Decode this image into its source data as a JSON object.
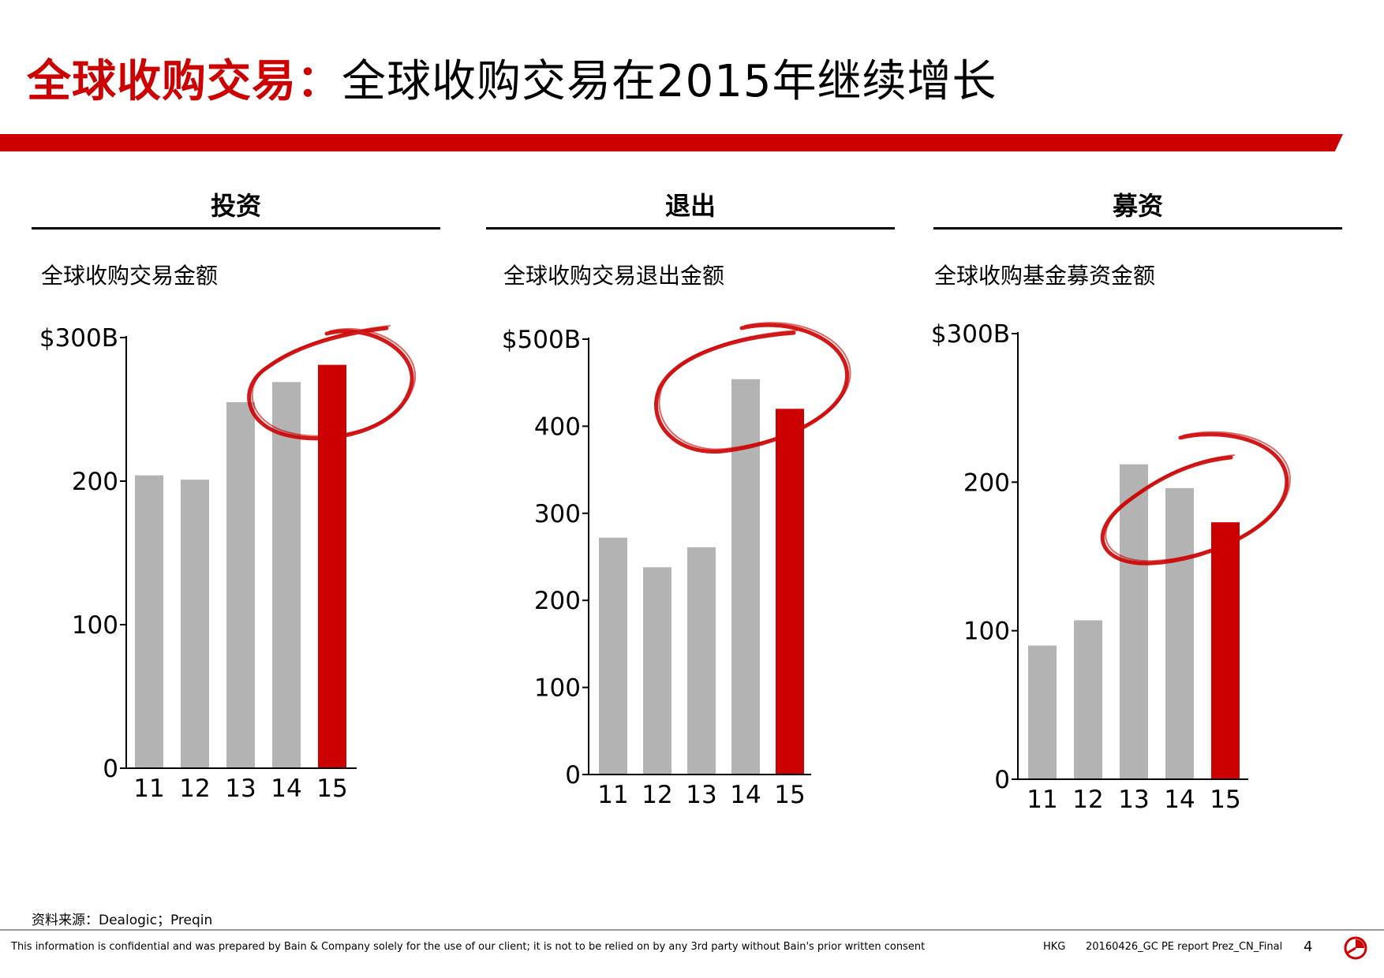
{
  "header": {
    "title_accent": "全球收购交易：",
    "title_main": "全球收购交易在2015年继续增长"
  },
  "chart_data": [
    {
      "type": "bar",
      "section": "投资",
      "title": "全球收购交易金额",
      "categories": [
        "11",
        "12",
        "13",
        "14",
        "15"
      ],
      "values": [
        204,
        201,
        255,
        269,
        281
      ],
      "highlight_index": 4,
      "ylim": [
        0,
        300
      ],
      "yticks": [
        "0",
        "100",
        "200",
        "$300B"
      ],
      "ytick_values": [
        0,
        100,
        200,
        300
      ],
      "circled": [
        "13",
        "14",
        "15"
      ]
    },
    {
      "type": "bar",
      "section": "退出",
      "title": "全球收购交易退出金额",
      "categories": [
        "11",
        "12",
        "13",
        "14",
        "15"
      ],
      "values": [
        272,
        238,
        261,
        454,
        420
      ],
      "highlight_index": 4,
      "ylim": [
        0,
        500
      ],
      "yticks": [
        "0",
        "100",
        "200",
        "300",
        "400",
        "$500B"
      ],
      "ytick_values": [
        0,
        100,
        200,
        300,
        400,
        500
      ],
      "circled": [
        "14",
        "15"
      ]
    },
    {
      "type": "bar",
      "section": "募资",
      "title": "全球收购基金募资金额",
      "categories": [
        "11",
        "12",
        "13",
        "14",
        "15"
      ],
      "values": [
        90,
        107,
        212,
        196,
        173
      ],
      "highlight_index": 4,
      "ylim": [
        0,
        300
      ],
      "yticks": [
        "0",
        "100",
        "200",
        "$300B"
      ],
      "ytick_values": [
        0,
        100,
        200,
        300
      ],
      "circled": [
        "13",
        "14",
        "15"
      ]
    }
  ],
  "colors": {
    "accent": "#cc0000",
    "bar_gray": "#b3b3b3",
    "rule": "#999999"
  },
  "footer": {
    "source": "资料来源：Dealogic；Preqin",
    "disclaimer": "This information is confidential and was prepared by Bain & Company solely for the use of our client; it is not to be relied on by any 3rd party without Bain's prior written consent",
    "office": "HKG",
    "filename": "20160426_GC PE report Prez_CN_Final",
    "page": "4",
    "logo_icon": "bain-logo-icon"
  }
}
